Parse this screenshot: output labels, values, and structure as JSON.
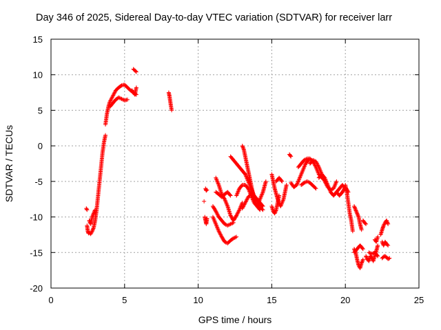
{
  "chart_data": {
    "type": "scatter",
    "title": "Day 346 of 2025, Sidereal Day-to-day VTEC variation (SDTVAR) for receiver larr",
    "xlabel": "GPS time / hours",
    "ylabel": "SDTVAR / TECUs",
    "xlim": [
      0,
      25
    ],
    "ylim": [
      -20,
      15
    ],
    "xticks": [
      "0",
      "5",
      "10",
      "15",
      "20",
      "25"
    ],
    "yticks": [
      "15",
      "10",
      "5",
      "0",
      "-5",
      "-10",
      "-15",
      "-20"
    ],
    "grid": true,
    "marker": "+",
    "color": "#ff0000",
    "segments": [
      {
        "x": [
          2.4,
          2.45
        ],
        "y": [
          -8.8,
          -9.0
        ]
      },
      {
        "x": [
          2.45,
          2.5,
          2.55
        ],
        "y": [
          -11.2,
          -12.0,
          -12.3
        ]
      },
      {
        "x": [
          2.6,
          2.7,
          2.8,
          2.9,
          3.0,
          3.1,
          3.2,
          3.3,
          3.4,
          3.5,
          3.6,
          3.7
        ],
        "y": [
          -12.2,
          -12.4,
          -12.0,
          -11.5,
          -10.5,
          -9.0,
          -7.0,
          -5.0,
          -3.0,
          -1.0,
          0.5,
          1.5
        ]
      },
      {
        "x": [
          2.6,
          2.7,
          2.8,
          2.9,
          3.0
        ],
        "y": [
          -10.5,
          -11.0,
          -10.0,
          -9.5,
          -9.0
        ]
      },
      {
        "x": [
          3.7,
          3.8,
          3.9,
          4.0,
          4.2,
          4.4,
          4.6,
          4.8,
          5.0,
          5.2,
          5.4,
          5.6,
          5.8
        ],
        "y": [
          3.0,
          4.5,
          5.5,
          6.2,
          7.0,
          7.8,
          8.2,
          8.5,
          8.6,
          8.2,
          7.8,
          7.5,
          7.2
        ]
      },
      {
        "x": [
          4.0,
          4.2,
          4.4,
          4.6,
          4.8,
          5.0,
          5.2
        ],
        "y": [
          5.5,
          6.0,
          6.5,
          6.8,
          6.6,
          6.4,
          6.5
        ]
      },
      {
        "x": [
          5.6,
          5.7,
          5.8
        ],
        "y": [
          10.8,
          10.6,
          10.4
        ]
      },
      {
        "x": [
          5.5,
          5.6,
          5.7,
          5.8
        ],
        "y": [
          7.8,
          7.5,
          7.2,
          8.2
        ]
      },
      {
        "x": [
          8.0,
          8.05,
          8.1,
          8.15,
          8.2
        ],
        "y": [
          7.5,
          7.0,
          6.3,
          5.6,
          5.0
        ]
      },
      {
        "x": [
          10.5,
          10.55,
          10.6
        ],
        "y": [
          -6.0,
          -6.3,
          -6.2
        ]
      },
      {
        "x": [
          10.45,
          10.5,
          10.55,
          10.6
        ],
        "y": [
          -10.0,
          -10.5,
          -11.0,
          -10.2
        ]
      },
      {
        "x": [
          10.4
        ],
        "y": [
          -7.8
        ]
      },
      {
        "x": [
          11.0,
          11.2,
          11.4,
          11.6,
          11.8,
          12.0,
          12.2,
          12.4,
          12.6
        ],
        "y": [
          -10.0,
          -11.0,
          -12.0,
          -12.8,
          -13.5,
          -13.7,
          -13.3,
          -13.0,
          -12.8
        ]
      },
      {
        "x": [
          11.0,
          11.2,
          11.4,
          11.6,
          11.8,
          12.0,
          12.2,
          12.4
        ],
        "y": [
          -8.5,
          -9.2,
          -10.0,
          -10.5,
          -11.0,
          -11.2,
          -11.0,
          -10.8
        ]
      },
      {
        "x": [
          11.2,
          11.4,
          11.6,
          11.8,
          12.0,
          12.2,
          12.4,
          12.6,
          12.8,
          13.0
        ],
        "y": [
          -4.5,
          -5.5,
          -6.8,
          -7.5,
          -8.5,
          -9.8,
          -10.5,
          -9.8,
          -9.0,
          -8.0
        ]
      },
      {
        "x": [
          11.2,
          11.4,
          11.6,
          11.8,
          12.0,
          12.2
        ],
        "y": [
          -6.5,
          -6.8,
          -7.2,
          -6.8,
          -6.5,
          -7.0
        ]
      },
      {
        "x": [
          12.2,
          12.4,
          12.6,
          12.8,
          13.0,
          13.2,
          13.4,
          13.6,
          13.8,
          14.0,
          14.2,
          14.4
        ],
        "y": [
          -1.5,
          -2.0,
          -2.5,
          -3.0,
          -3.5,
          -4.0,
          -5.0,
          -6.0,
          -7.0,
          -7.5,
          -8.0,
          -8.5
        ]
      },
      {
        "x": [
          13.0,
          13.1,
          13.2,
          13.3,
          13.4,
          13.5,
          13.6,
          13.7,
          13.8,
          14.0,
          14.2
        ],
        "y": [
          0.0,
          -0.5,
          -1.5,
          -2.5,
          -3.5,
          -4.5,
          -5.5,
          -6.5,
          -7.5,
          -8.5,
          -9.0
        ]
      },
      {
        "x": [
          12.6,
          12.8,
          13.0,
          13.2,
          13.4,
          13.6,
          13.8,
          14.0,
          14.2,
          14.4,
          14.6
        ],
        "y": [
          -7.0,
          -6.0,
          -5.5,
          -5.5,
          -6.0,
          -7.0,
          -8.0,
          -8.5,
          -7.5,
          -6.5,
          -5.0
        ]
      },
      {
        "x": [
          13.0,
          13.2,
          13.4,
          13.6,
          13.8,
          14.0,
          14.2,
          14.4
        ],
        "y": [
          -8.8,
          -8.0,
          -7.2,
          -6.8,
          -7.0,
          -7.8,
          -8.6,
          -9.0
        ]
      },
      {
        "x": [
          15.0,
          15.2,
          15.4,
          15.6,
          15.8,
          16.0
        ],
        "y": [
          -4.0,
          -6.0,
          -7.5,
          -8.5,
          -7.5,
          -5.5
        ]
      },
      {
        "x": [
          15.0,
          15.1,
          15.2,
          15.3,
          15.4,
          15.5
        ],
        "y": [
          -8.5,
          -9.2,
          -9.5,
          -9.0,
          -8.0,
          -7.0
        ]
      },
      {
        "x": [
          15.3,
          15.5,
          15.7
        ],
        "y": [
          -5.0,
          -4.5,
          -5.0
        ]
      },
      {
        "x": [
          16.2,
          16.3
        ],
        "y": [
          -1.2,
          -1.5
        ]
      },
      {
        "x": [
          16.3,
          16.5,
          16.7,
          16.9,
          17.1,
          17.3,
          17.5
        ],
        "y": [
          -5.2,
          -5.8,
          -5.5,
          -4.5,
          -3.5,
          -2.5,
          -2.0
        ]
      },
      {
        "x": [
          16.8,
          17.0,
          17.2,
          17.4,
          17.6,
          17.8,
          18.0,
          18.2,
          18.4,
          18.6
        ],
        "y": [
          -3.0,
          -2.5,
          -2.0,
          -1.8,
          -1.8,
          -2.2,
          -3.0,
          -4.0,
          -4.5,
          -4.8
        ]
      },
      {
        "x": [
          17.0,
          17.2,
          17.4,
          17.6,
          17.8,
          18.0
        ],
        "y": [
          -5.5,
          -5.2,
          -5.0,
          -5.2,
          -5.6,
          -6.0
        ]
      },
      {
        "x": [
          17.6,
          17.8,
          18.0,
          18.2,
          18.4,
          18.6,
          18.8,
          19.0,
          19.2,
          19.4
        ],
        "y": [
          -2.5,
          -2.0,
          -2.2,
          -3.0,
          -4.0,
          -5.0,
          -5.8,
          -6.2,
          -6.0,
          -5.0
        ]
      },
      {
        "x": [
          18.2,
          18.4,
          18.6,
          18.8,
          19.0,
          19.2,
          19.4,
          19.6,
          19.8,
          20.0
        ],
        "y": [
          -4.5,
          -4.0,
          -4.5,
          -5.5,
          -6.5,
          -7.0,
          -6.5,
          -6.0,
          -5.5,
          -6.0
        ]
      },
      {
        "x": [
          19.4,
          19.6,
          19.8,
          20.0,
          20.2
        ],
        "y": [
          -6.5,
          -7.0,
          -6.5,
          -5.8,
          -6.5
        ]
      },
      {
        "x": [
          20.0,
          20.1,
          20.2,
          20.3,
          20.4,
          20.5
        ],
        "y": [
          -5.5,
          -6.5,
          -8.0,
          -9.5,
          -10.5,
          -12.0
        ]
      },
      {
        "x": [
          20.6,
          20.7,
          20.8,
          20.9,
          21.0,
          21.1
        ],
        "y": [
          -8.5,
          -9.0,
          -9.5,
          -10.0,
          -11.0,
          -11.8
        ]
      },
      {
        "x": [
          21.2,
          21.3,
          21.4
        ],
        "y": [
          -10.5,
          -10.8,
          -11.0
        ]
      },
      {
        "x": [
          20.6,
          20.7,
          20.8,
          20.9,
          21.0,
          21.1,
          21.2
        ],
        "y": [
          -14.5,
          -15.0,
          -16.0,
          -16.8,
          -17.2,
          -16.5,
          -16.0
        ]
      },
      {
        "x": [
          20.6,
          20.8,
          21.0,
          21.2
        ],
        "y": [
          -15.0,
          -14.5,
          -14.0,
          -14.5
        ]
      },
      {
        "x": [
          21.4,
          21.5,
          21.6,
          21.7,
          21.8,
          21.9,
          22.0,
          22.1,
          22.2
        ],
        "y": [
          -15.5,
          -16.0,
          -16.2,
          -15.5,
          -15.8,
          -16.2,
          -15.5,
          -14.8,
          -14.0
        ]
      },
      {
        "x": [
          21.6,
          21.8,
          22.0,
          22.2
        ],
        "y": [
          -15.0,
          -15.2,
          -15.0,
          -15.5
        ]
      },
      {
        "x": [
          22.0,
          22.1,
          22.2
        ],
        "y": [
          -13.2,
          -13.5,
          -12.8
        ]
      },
      {
        "x": [
          22.4,
          22.5,
          22.6,
          22.7,
          22.8,
          22.9
        ],
        "y": [
          -12.5,
          -11.8,
          -11.2,
          -10.8,
          -10.5,
          -11.0
        ]
      },
      {
        "x": [
          22.5,
          22.6,
          22.7,
          22.8,
          22.9
        ],
        "y": [
          -13.5,
          -14.0,
          -13.5,
          -13.8,
          -14.0
        ]
      },
      {
        "x": [
          22.5,
          22.6,
          22.7,
          22.8,
          22.9,
          23.0
        ],
        "y": [
          -15.8,
          -15.6,
          -15.5,
          -15.7,
          -15.9,
          -15.8
        ]
      }
    ]
  }
}
